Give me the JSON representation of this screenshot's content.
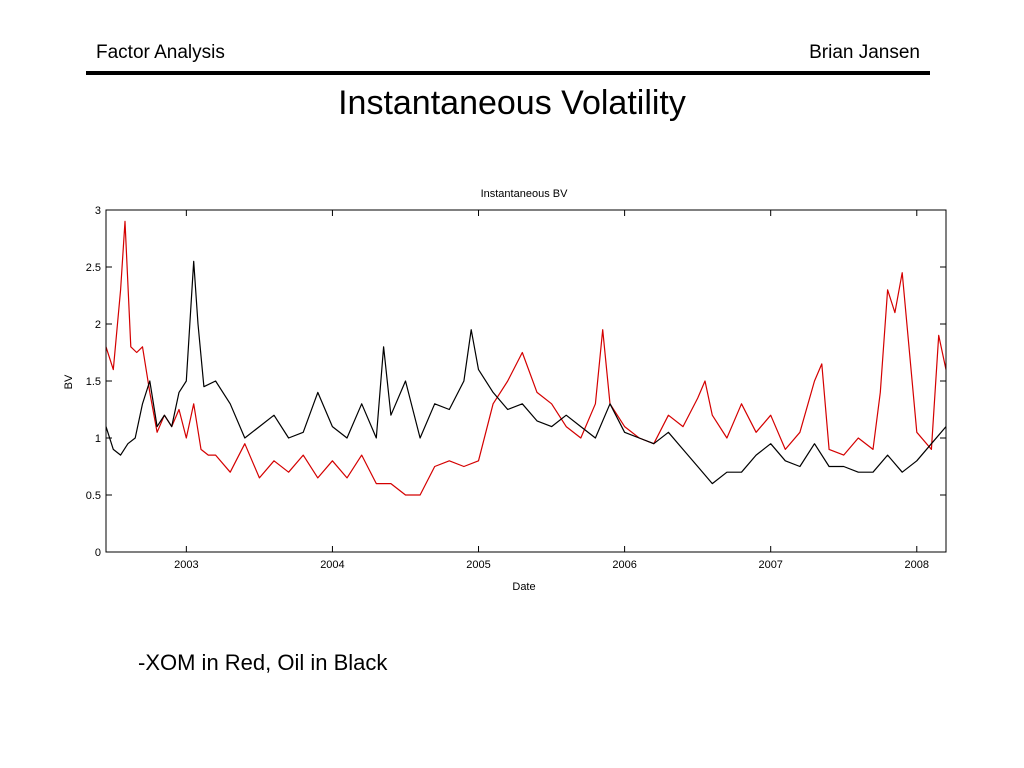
{
  "slide": {
    "header_left": "Factor Analysis",
    "header_right": "Brian Jansen",
    "title": "Instantaneous Volatility",
    "caption": "-XOM in Red, Oil in Black"
  },
  "chart_data": {
    "type": "line",
    "title": "Instantaneous BV",
    "xlabel": "Date",
    "ylabel": "BV",
    "xlim": [
      2002.45,
      2008.2
    ],
    "ylim": [
      0,
      3
    ],
    "xticks": [
      2003,
      2004,
      2005,
      2006,
      2007,
      2008
    ],
    "xtick_labels": [
      "2003",
      "2004",
      "2005",
      "2006",
      "2007",
      "2008"
    ],
    "yticks": [
      0,
      0.5,
      1,
      1.5,
      2,
      2.5,
      3
    ],
    "ytick_labels": [
      "0",
      "0.5",
      "1",
      "1.5",
      "2",
      "2.5",
      "3"
    ],
    "grid": false,
    "legend": "none",
    "series": [
      {
        "color": "#d40000",
        "x": [
          2002.45,
          2002.5,
          2002.55,
          2002.58,
          2002.62,
          2002.66,
          2002.7,
          2002.75,
          2002.8,
          2002.85,
          2002.9,
          2002.95,
          2003.0,
          2003.05,
          2003.1,
          2003.15,
          2003.2,
          2003.3,
          2003.4,
          2003.5,
          2003.6,
          2003.7,
          2003.8,
          2003.9,
          2004.0,
          2004.1,
          2004.2,
          2004.3,
          2004.4,
          2004.5,
          2004.6,
          2004.7,
          2004.8,
          2004.9,
          2005.0,
          2005.1,
          2005.2,
          2005.3,
          2005.4,
          2005.5,
          2005.6,
          2005.7,
          2005.8,
          2005.85,
          2005.9,
          2006.0,
          2006.1,
          2006.2,
          2006.3,
          2006.4,
          2006.5,
          2006.55,
          2006.6,
          2006.7,
          2006.8,
          2006.9,
          2007.0,
          2007.1,
          2007.2,
          2007.3,
          2007.35,
          2007.4,
          2007.5,
          2007.6,
          2007.7,
          2007.75,
          2007.8,
          2007.85,
          2007.9,
          2008.0,
          2008.1,
          2008.15,
          2008.2
        ],
        "y": [
          1.8,
          1.6,
          2.3,
          2.9,
          1.8,
          1.75,
          1.8,
          1.4,
          1.05,
          1.2,
          1.1,
          1.25,
          1.0,
          1.3,
          0.9,
          0.85,
          0.85,
          0.7,
          0.95,
          0.65,
          0.8,
          0.7,
          0.85,
          0.65,
          0.8,
          0.65,
          0.85,
          0.6,
          0.6,
          0.5,
          0.5,
          0.75,
          0.8,
          0.75,
          0.8,
          1.3,
          1.5,
          1.75,
          1.4,
          1.3,
          1.1,
          1.0,
          1.3,
          1.95,
          1.3,
          1.1,
          1.0,
          0.95,
          1.2,
          1.1,
          1.35,
          1.5,
          1.2,
          1.0,
          1.3,
          1.05,
          1.2,
          0.9,
          1.05,
          1.5,
          1.65,
          0.9,
          0.85,
          1.0,
          0.9,
          1.4,
          2.3,
          2.1,
          2.45,
          1.05,
          0.9,
          1.9,
          1.6
        ]
      },
      {
        "color": "#000000",
        "x": [
          2002.45,
          2002.5,
          2002.55,
          2002.6,
          2002.65,
          2002.7,
          2002.75,
          2002.8,
          2002.85,
          2002.9,
          2002.95,
          2003.0,
          2003.05,
          2003.08,
          2003.12,
          2003.2,
          2003.3,
          2003.4,
          2003.5,
          2003.6,
          2003.7,
          2003.8,
          2003.9,
          2004.0,
          2004.1,
          2004.2,
          2004.3,
          2004.35,
          2004.4,
          2004.5,
          2004.6,
          2004.7,
          2004.8,
          2004.9,
          2004.95,
          2005.0,
          2005.1,
          2005.2,
          2005.3,
          2005.4,
          2005.5,
          2005.6,
          2005.7,
          2005.8,
          2005.9,
          2006.0,
          2006.1,
          2006.2,
          2006.3,
          2006.4,
          2006.5,
          2006.6,
          2006.7,
          2006.8,
          2006.9,
          2007.0,
          2007.1,
          2007.2,
          2007.3,
          2007.4,
          2007.5,
          2007.6,
          2007.7,
          2007.8,
          2007.9,
          2008.0,
          2008.1,
          2008.2
        ],
        "y": [
          1.1,
          0.9,
          0.85,
          0.95,
          1.0,
          1.3,
          1.5,
          1.1,
          1.2,
          1.1,
          1.4,
          1.5,
          2.55,
          2.0,
          1.45,
          1.5,
          1.3,
          1.0,
          1.1,
          1.2,
          1.0,
          1.05,
          1.4,
          1.1,
          1.0,
          1.3,
          1.0,
          1.8,
          1.2,
          1.5,
          1.0,
          1.3,
          1.25,
          1.5,
          1.95,
          1.6,
          1.4,
          1.25,
          1.3,
          1.15,
          1.1,
          1.2,
          1.1,
          1.0,
          1.3,
          1.05,
          1.0,
          0.95,
          1.05,
          0.9,
          0.75,
          0.6,
          0.7,
          0.7,
          0.85,
          0.95,
          0.8,
          0.75,
          0.95,
          0.75,
          0.75,
          0.7,
          0.7,
          0.85,
          0.7,
          0.8,
          0.95,
          1.1
        ]
      }
    ]
  }
}
